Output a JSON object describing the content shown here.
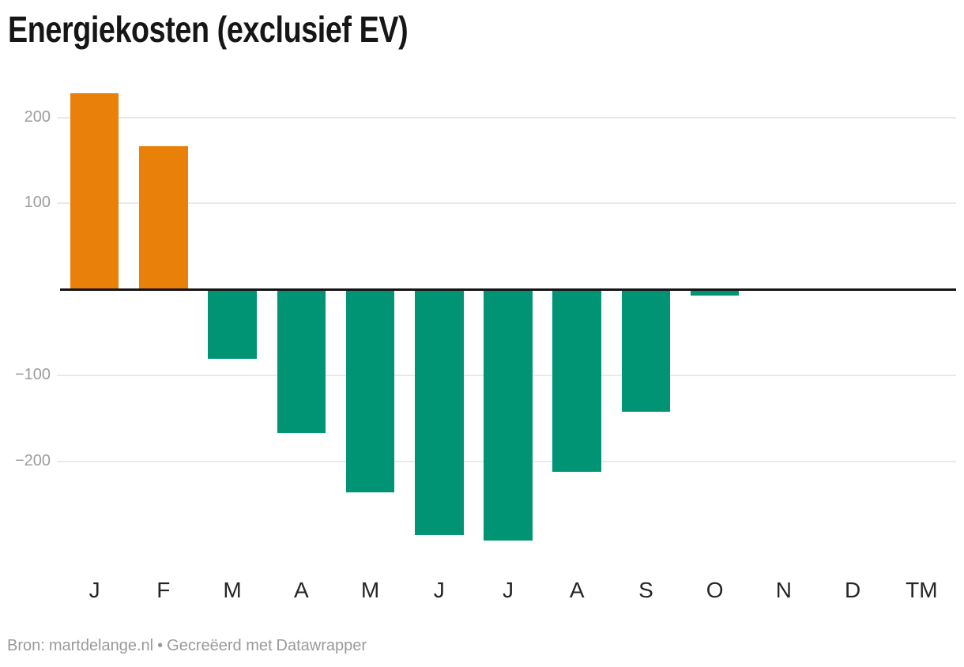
{
  "chart_data": {
    "type": "bar",
    "title": "Energiekosten (exclusief EV)",
    "categories": [
      "J",
      "F",
      "M",
      "A",
      "M",
      "J",
      "J",
      "A",
      "S",
      "O",
      "N",
      "D",
      "TM"
    ],
    "values": [
      228,
      167,
      -81,
      -167,
      -236,
      -285,
      -292,
      -212,
      -142,
      -7,
      null,
      null,
      null
    ],
    "y_ticks": [
      {
        "value": 200,
        "label": "200"
      },
      {
        "value": 100,
        "label": "100"
      },
      {
        "value": -100,
        "label": "−100"
      },
      {
        "value": -200,
        "label": "−200"
      }
    ],
    "ylim": [
      -300,
      240
    ],
    "grid": "horizontal",
    "legend": "none",
    "positive_color": "#e8800a",
    "negative_color": "#009374"
  },
  "footer": {
    "source_label": "Bron:",
    "source_link": "martdelange.nl",
    "separator": "•",
    "credit_prefix": "Gecreëerd met",
    "credit_link": "Datawrapper"
  }
}
